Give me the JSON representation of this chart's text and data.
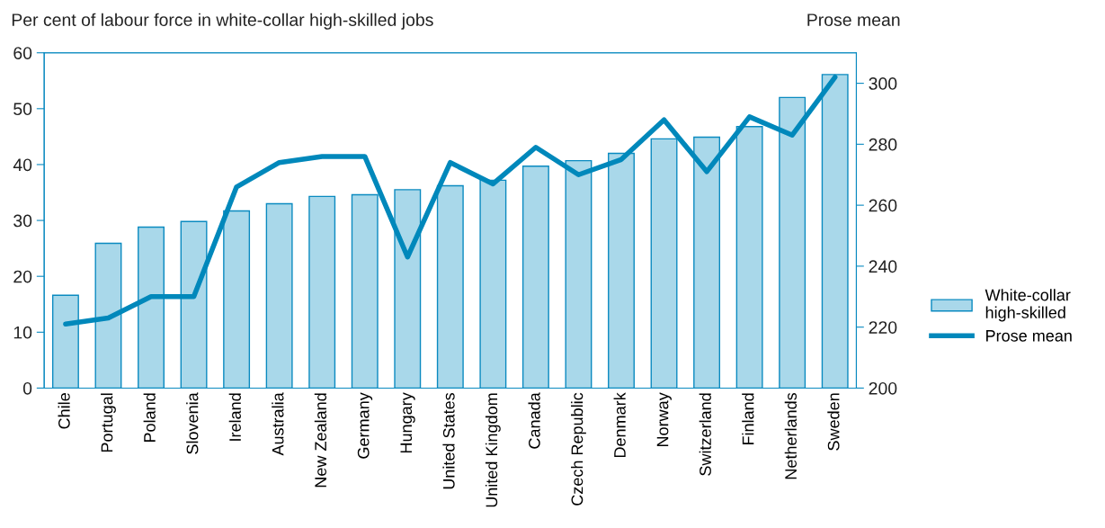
{
  "chart_data": {
    "type": "bar",
    "ylabel": "Per cent of labour force in white-collar high-skilled jobs",
    "y2label": "Prose mean",
    "categories": [
      "Chile",
      "Portugal",
      "Poland",
      "Slovenia",
      "Ireland",
      "Australia",
      "New Zealand",
      "Germany",
      "Hungary",
      "United States",
      "United Kingdom",
      "Canada",
      "Czech Republic",
      "Denmark",
      "Norway",
      "Switzerland",
      "Finland",
      "Netherlands",
      "Sweden"
    ],
    "series": [
      {
        "name": "White-collar\nhigh-skilled",
        "color": "#a9d8ea",
        "values": [
          16.6,
          25.9,
          28.8,
          29.8,
          31.7,
          33.0,
          34.3,
          34.6,
          35.5,
          36.2,
          37.2,
          39.7,
          40.7,
          42.0,
          44.6,
          44.9,
          46.8,
          52.0,
          56.1
        ]
      },
      {
        "name": "Prose mean",
        "type": "line",
        "axis": "y2",
        "color": "#0088bb",
        "values": [
          221,
          223,
          230,
          230,
          266,
          274,
          276,
          276,
          243,
          274,
          267,
          279,
          270,
          275,
          288,
          271,
          289,
          283,
          302
        ]
      }
    ],
    "ylim": [
      0,
      60
    ],
    "yticks": [
      0,
      10,
      20,
      30,
      40,
      50,
      60
    ],
    "y2lim": [
      200,
      310
    ],
    "y2ticks": [
      200,
      220,
      240,
      260,
      280,
      300
    ],
    "grid": false,
    "legend": "right",
    "marker": "none",
    "line_style": "solid"
  }
}
